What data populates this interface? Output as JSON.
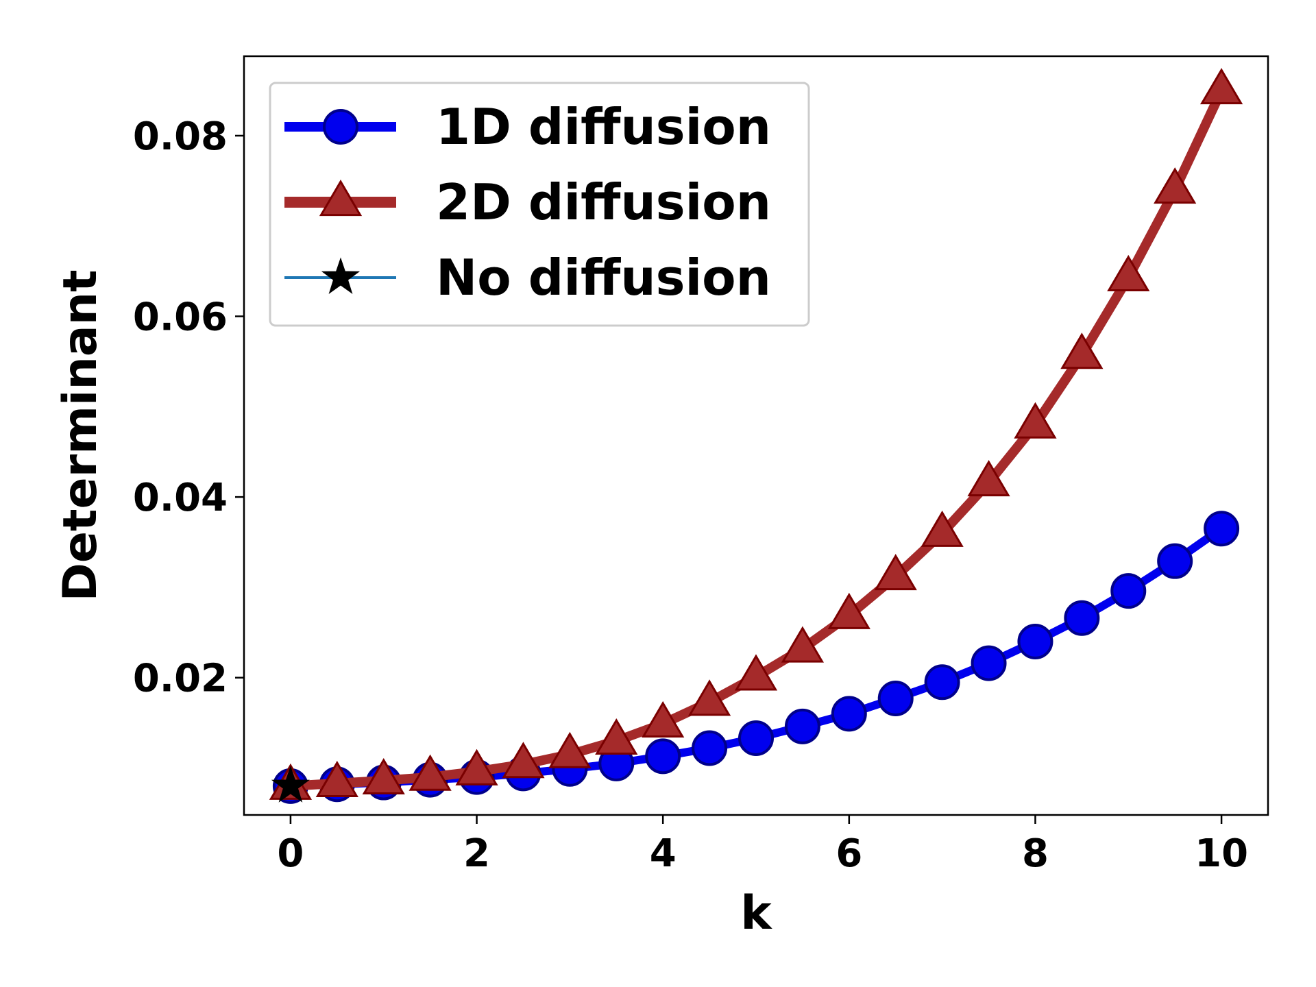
{
  "chart_data": {
    "type": "line",
    "xlabel": "k",
    "ylabel": "Determinant",
    "xlim": [
      -0.5,
      10.5
    ],
    "ylim": [
      0.0048,
      0.0888
    ],
    "xticks": [
      0,
      2,
      4,
      6,
      8,
      10
    ],
    "xtick_labels": [
      "0",
      "2",
      "4",
      "6",
      "8",
      "10"
    ],
    "yticks": [
      0.02,
      0.04,
      0.06,
      0.08
    ],
    "ytick_labels": [
      "0.02",
      "0.04",
      "0.06",
      "0.08"
    ],
    "grid": false,
    "legend_position": "upper-left",
    "series": [
      {
        "name": "1D diffusion",
        "marker": "circle",
        "color": "#0000ee",
        "edge_color": "#00008b",
        "x": [
          0,
          0.5,
          1,
          1.5,
          2,
          2.5,
          3,
          3.5,
          4,
          4.5,
          5,
          5.5,
          6,
          6.5,
          7,
          7.5,
          8,
          8.5,
          9,
          9.5,
          10
        ],
        "values": [
          0.008,
          0.0082,
          0.0084,
          0.0087,
          0.009,
          0.0094,
          0.0099,
          0.0105,
          0.0113,
          0.0122,
          0.0133,
          0.0146,
          0.016,
          0.0177,
          0.0195,
          0.0216,
          0.024,
          0.0266,
          0.0296,
          0.0329,
          0.0365
        ]
      },
      {
        "name": "2D diffusion",
        "marker": "triangle",
        "color": "#a52a2a",
        "edge_color": "#7a0000",
        "x": [
          0,
          0.5,
          1,
          1.5,
          2,
          2.5,
          3,
          3.5,
          4,
          4.5,
          5,
          5.5,
          6,
          6.5,
          7,
          7.5,
          8,
          8.5,
          9,
          9.5,
          10
        ],
        "values": [
          0.008,
          0.0083,
          0.0086,
          0.009,
          0.0096,
          0.0104,
          0.0115,
          0.013,
          0.0149,
          0.0173,
          0.0201,
          0.0232,
          0.0269,
          0.0312,
          0.036,
          0.0416,
          0.048,
          0.0557,
          0.0643,
          0.074,
          0.085
        ]
      },
      {
        "name": "No diffusion",
        "marker": "star",
        "color": "#000000",
        "line_color": "#1f77b4",
        "x": [
          0
        ],
        "values": [
          0.008
        ]
      }
    ]
  }
}
